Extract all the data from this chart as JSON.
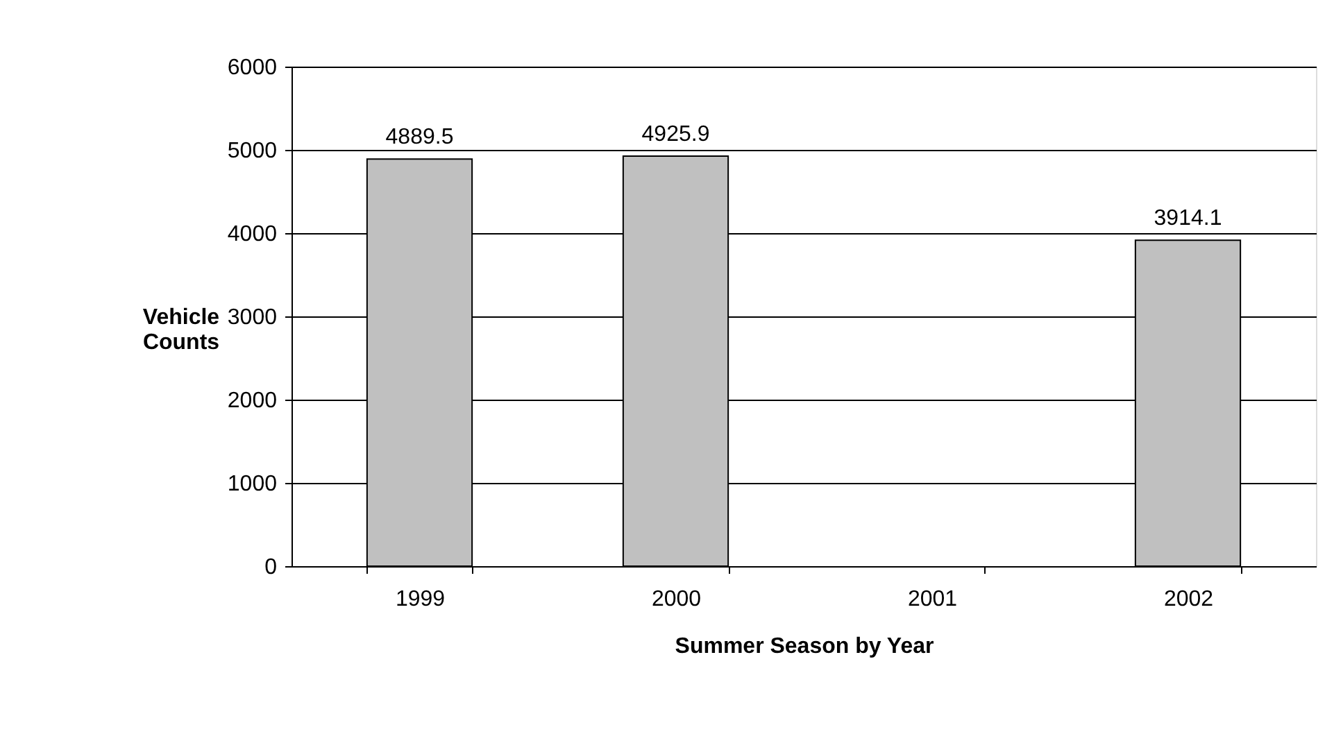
{
  "chart_data": {
    "type": "bar",
    "xlabel": "Summer Season by Year",
    "ylabel": "Vehicle\nCounts",
    "categories": [
      "1999",
      "2000",
      "2001",
      "2002"
    ],
    "values": [
      4889.5,
      4925.9,
      null,
      3914.1
    ],
    "color": "#c0c0c0",
    "ylim": [
      0,
      6000
    ],
    "yticks": [
      0,
      1000,
      2000,
      3000,
      4000,
      5000,
      6000
    ],
    "grid": "y",
    "data_labels": true
  }
}
